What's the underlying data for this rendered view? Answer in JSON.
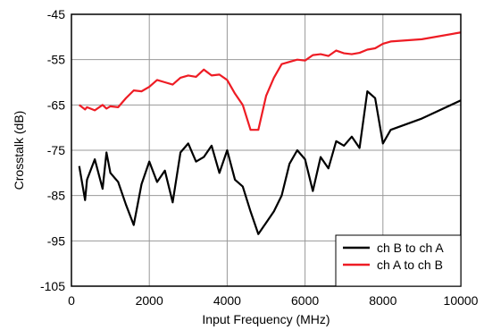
{
  "chart_data": {
    "type": "line",
    "title": "",
    "xlabel": "Input Frequency  (MHz)",
    "ylabel": "Crosstalk  (dB)",
    "xlim": [
      0,
      10000
    ],
    "ylim": [
      -105,
      -45
    ],
    "xticks": [
      0,
      2000,
      4000,
      6000,
      8000,
      10000
    ],
    "yticks": [
      -45,
      -55,
      -65,
      -75,
      -85,
      -95,
      -105
    ],
    "xtick_labels": [
      "0",
      "2000",
      "4000",
      "6000",
      "8000",
      "10000"
    ],
    "ytick_labels": [
      "-45",
      "-55",
      "-65",
      "-75",
      "-85",
      "-95",
      "-105"
    ],
    "grid": true,
    "legend_position": "bottom-right",
    "series": [
      {
        "name": "ch B to ch A",
        "color": "#000000",
        "x": [
          200,
          350,
          400,
          600,
          800,
          900,
          1000,
          1200,
          1400,
          1600,
          1800,
          2000,
          2200,
          2400,
          2600,
          2800,
          3000,
          3200,
          3400,
          3600,
          3800,
          4000,
          4200,
          4400,
          4600,
          4800,
          5000,
          5200,
          5400,
          5600,
          5800,
          6000,
          6200,
          6400,
          6600,
          6800,
          7000,
          7200,
          7400,
          7600,
          7800,
          8000,
          8200,
          9000,
          10000
        ],
        "y": [
          -78.5,
          -86,
          -81.5,
          -77,
          -83.5,
          -75.5,
          -80,
          -82,
          -87,
          -91.5,
          -82.5,
          -77.5,
          -82,
          -79.5,
          -86.5,
          -75.5,
          -73.5,
          -77.5,
          -76.5,
          -74,
          -80,
          -75,
          -81.5,
          -83,
          -88.5,
          -93.5,
          -91,
          -88.5,
          -85,
          -78,
          -75,
          -77,
          -84,
          -76.5,
          -79,
          -73,
          -74,
          -72,
          -74.5,
          -62,
          -63.5,
          -73.5,
          -70.5,
          -68,
          -64
        ]
      },
      {
        "name": "ch A to ch B",
        "color": "#ee1c24",
        "x": [
          200,
          350,
          400,
          600,
          800,
          900,
          1000,
          1200,
          1400,
          1600,
          1800,
          2000,
          2200,
          2400,
          2600,
          2800,
          3000,
          3200,
          3400,
          3600,
          3800,
          4000,
          4200,
          4400,
          4600,
          4800,
          5000,
          5200,
          5400,
          5600,
          5800,
          6000,
          6200,
          6400,
          6600,
          6800,
          7000,
          7200,
          7400,
          7600,
          7800,
          8000,
          8200,
          9000,
          10000
        ],
        "y": [
          -65,
          -66,
          -65.5,
          -66.2,
          -65,
          -65.8,
          -65.3,
          -65.5,
          -63.5,
          -61.8,
          -62,
          -61,
          -59.5,
          -60,
          -60.5,
          -59,
          -58.5,
          -58.8,
          -57.2,
          -58.5,
          -58.3,
          -59.5,
          -62.5,
          -65,
          -70.5,
          -70.5,
          -63,
          -59,
          -56,
          -55.5,
          -55,
          -55.2,
          -54,
          -53.8,
          -54.2,
          -53,
          -53.6,
          -53.8,
          -53.5,
          -52.8,
          -52.5,
          -51.5,
          -51,
          -50.5,
          -49
        ]
      }
    ]
  }
}
